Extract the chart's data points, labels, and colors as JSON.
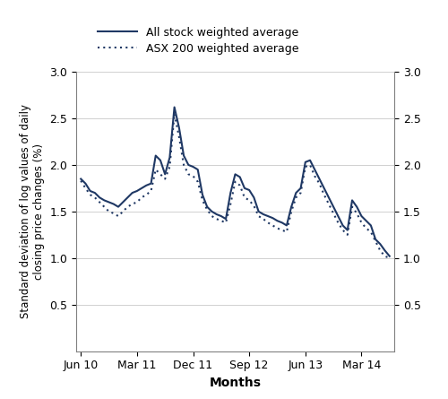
{
  "xlabel": "Months",
  "ylabel": "Standard deviation of log values of daily\nclosing price changes (%)",
  "line_color": "#1F3864",
  "ylim": [
    0,
    3.0
  ],
  "yticks": [
    0.5,
    1.0,
    1.5,
    2.0,
    2.5,
    3.0
  ],
  "legend_solid": "All stock weighted average",
  "legend_dotted": "ASX 200 weighted average",
  "xtick_labels": [
    "Jun 10",
    "Mar 11",
    "Dec 11",
    "Sep 12",
    "Jun 13",
    "Mar 14"
  ],
  "all_stock": [
    1.85,
    1.8,
    1.72,
    1.7,
    1.65,
    1.62,
    1.6,
    1.58,
    1.55,
    1.6,
    1.65,
    1.7,
    1.72,
    1.75,
    1.78,
    1.8,
    2.1,
    2.05,
    1.9,
    2.08,
    2.62,
    2.4,
    2.1,
    2.0,
    1.98,
    1.95,
    1.68,
    1.55,
    1.5,
    1.47,
    1.45,
    1.42,
    1.7,
    1.9,
    1.87,
    1.75,
    1.73,
    1.65,
    1.5,
    1.47,
    1.45,
    1.43,
    1.4,
    1.38,
    1.35,
    1.55,
    1.7,
    1.75,
    2.03,
    2.05,
    1.95,
    1.85,
    1.75,
    1.65,
    1.55,
    1.45,
    1.35,
    1.3,
    1.62,
    1.55,
    1.45,
    1.4,
    1.35,
    1.2,
    1.15,
    1.08,
    1.02
  ],
  "asx200": [
    1.83,
    1.75,
    1.68,
    1.65,
    1.6,
    1.55,
    1.5,
    1.48,
    1.45,
    1.5,
    1.55,
    1.58,
    1.6,
    1.65,
    1.68,
    1.72,
    1.95,
    1.9,
    1.85,
    1.98,
    2.55,
    2.3,
    2.0,
    1.9,
    1.88,
    1.82,
    1.62,
    1.52,
    1.45,
    1.42,
    1.4,
    1.38,
    1.58,
    1.82,
    1.78,
    1.65,
    1.62,
    1.56,
    1.45,
    1.42,
    1.38,
    1.35,
    1.32,
    1.3,
    1.28,
    1.5,
    1.65,
    1.7,
    1.98,
    2.0,
    1.88,
    1.8,
    1.68,
    1.58,
    1.48,
    1.38,
    1.3,
    1.25,
    1.55,
    1.48,
    1.38,
    1.32,
    1.28,
    1.18,
    1.08,
    1.02,
    1.0
  ],
  "n_points": 67
}
